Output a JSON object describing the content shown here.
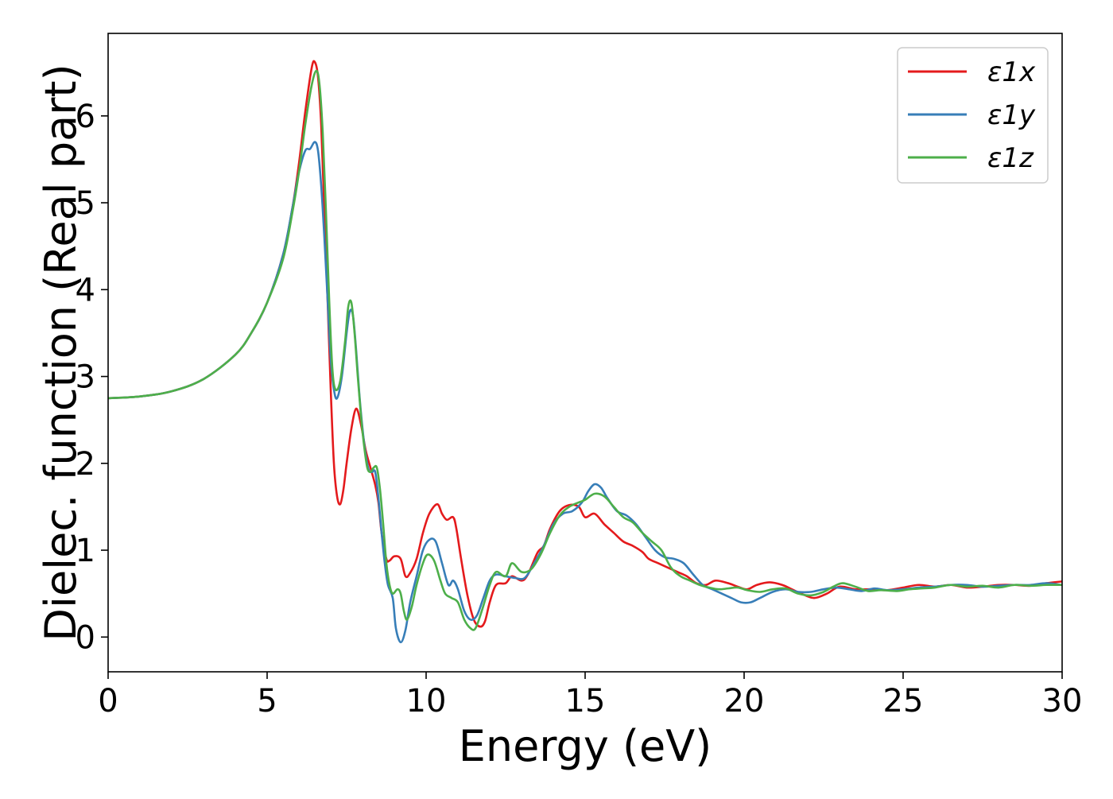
{
  "chart_data": {
    "type": "line",
    "xlabel": "Energy (eV)",
    "ylabel": "Dielec. function (Real part)",
    "xlim": [
      0,
      30
    ],
    "ylim": [
      -0.4,
      6.95
    ],
    "xticks": [
      0,
      5,
      10,
      15,
      20,
      25,
      30
    ],
    "yticks": [
      0,
      1,
      2,
      3,
      4,
      5,
      6
    ],
    "grid": false,
    "legend_position": "top-right",
    "series": [
      {
        "name": "ε1x",
        "color": "#e41a1c",
        "points": [
          [
            0,
            2.75
          ],
          [
            1,
            2.77
          ],
          [
            2,
            2.83
          ],
          [
            3,
            2.97
          ],
          [
            4,
            3.25
          ],
          [
            4.5,
            3.5
          ],
          [
            5,
            3.85
          ],
          [
            5.5,
            4.4
          ],
          [
            5.8,
            4.95
          ],
          [
            6.0,
            5.45
          ],
          [
            6.2,
            6.05
          ],
          [
            6.4,
            6.55
          ],
          [
            6.5,
            6.62
          ],
          [
            6.6,
            6.45
          ],
          [
            6.7,
            5.9
          ],
          [
            6.8,
            4.9
          ],
          [
            6.9,
            3.9
          ],
          [
            7.0,
            2.85
          ],
          [
            7.1,
            2.0
          ],
          [
            7.2,
            1.62
          ],
          [
            7.3,
            1.53
          ],
          [
            7.4,
            1.7
          ],
          [
            7.5,
            2.0
          ],
          [
            7.65,
            2.4
          ],
          [
            7.8,
            2.63
          ],
          [
            7.95,
            2.45
          ],
          [
            8.1,
            2.15
          ],
          [
            8.25,
            1.95
          ],
          [
            8.4,
            1.75
          ],
          [
            8.5,
            1.55
          ],
          [
            8.6,
            1.2
          ],
          [
            8.75,
            0.9
          ],
          [
            8.85,
            0.88
          ],
          [
            9.0,
            0.93
          ],
          [
            9.2,
            0.9
          ],
          [
            9.35,
            0.7
          ],
          [
            9.5,
            0.74
          ],
          [
            9.7,
            0.9
          ],
          [
            9.9,
            1.2
          ],
          [
            10.1,
            1.42
          ],
          [
            10.35,
            1.53
          ],
          [
            10.5,
            1.42
          ],
          [
            10.65,
            1.35
          ],
          [
            10.85,
            1.38
          ],
          [
            10.95,
            1.25
          ],
          [
            11.1,
            0.9
          ],
          [
            11.3,
            0.48
          ],
          [
            11.5,
            0.2
          ],
          [
            11.7,
            0.12
          ],
          [
            11.85,
            0.18
          ],
          [
            12.0,
            0.4
          ],
          [
            12.2,
            0.6
          ],
          [
            12.5,
            0.62
          ],
          [
            12.7,
            0.7
          ],
          [
            13.0,
            0.65
          ],
          [
            13.2,
            0.72
          ],
          [
            13.5,
            0.97
          ],
          [
            13.7,
            1.05
          ],
          [
            13.9,
            1.25
          ],
          [
            14.2,
            1.45
          ],
          [
            14.5,
            1.52
          ],
          [
            14.8,
            1.5
          ],
          [
            15.0,
            1.38
          ],
          [
            15.3,
            1.42
          ],
          [
            15.6,
            1.3
          ],
          [
            15.9,
            1.2
          ],
          [
            16.2,
            1.1
          ],
          [
            16.5,
            1.05
          ],
          [
            16.8,
            0.98
          ],
          [
            17.0,
            0.9
          ],
          [
            17.3,
            0.85
          ],
          [
            17.6,
            0.8
          ],
          [
            17.9,
            0.75
          ],
          [
            18.2,
            0.7
          ],
          [
            18.5,
            0.62
          ],
          [
            18.8,
            0.6
          ],
          [
            19.1,
            0.65
          ],
          [
            19.5,
            0.62
          ],
          [
            19.8,
            0.58
          ],
          [
            20.1,
            0.55
          ],
          [
            20.4,
            0.6
          ],
          [
            20.8,
            0.63
          ],
          [
            21.2,
            0.6
          ],
          [
            21.5,
            0.55
          ],
          [
            21.8,
            0.5
          ],
          [
            22.2,
            0.45
          ],
          [
            22.6,
            0.5
          ],
          [
            23.0,
            0.58
          ],
          [
            23.5,
            0.55
          ],
          [
            24.0,
            0.55
          ],
          [
            24.5,
            0.54
          ],
          [
            25.0,
            0.57
          ],
          [
            25.5,
            0.6
          ],
          [
            26.0,
            0.58
          ],
          [
            26.5,
            0.6
          ],
          [
            27.0,
            0.57
          ],
          [
            27.5,
            0.58
          ],
          [
            28.0,
            0.6
          ],
          [
            28.5,
            0.6
          ],
          [
            29.0,
            0.59
          ],
          [
            29.5,
            0.62
          ],
          [
            30.0,
            0.64
          ]
        ]
      },
      {
        "name": "ε1y",
        "color": "#377eb8",
        "points": [
          [
            0,
            2.75
          ],
          [
            1,
            2.77
          ],
          [
            2,
            2.83
          ],
          [
            3,
            2.97
          ],
          [
            4,
            3.25
          ],
          [
            4.5,
            3.5
          ],
          [
            5,
            3.85
          ],
          [
            5.5,
            4.4
          ],
          [
            5.8,
            4.95
          ],
          [
            6.0,
            5.35
          ],
          [
            6.2,
            5.6
          ],
          [
            6.35,
            5.62
          ],
          [
            6.5,
            5.7
          ],
          [
            6.6,
            5.6
          ],
          [
            6.7,
            5.2
          ],
          [
            6.8,
            4.6
          ],
          [
            6.9,
            3.9
          ],
          [
            7.0,
            3.2
          ],
          [
            7.1,
            2.85
          ],
          [
            7.2,
            2.75
          ],
          [
            7.35,
            3.0
          ],
          [
            7.5,
            3.5
          ],
          [
            7.6,
            3.75
          ],
          [
            7.7,
            3.7
          ],
          [
            7.8,
            3.3
          ],
          [
            7.9,
            2.8
          ],
          [
            8.0,
            2.4
          ],
          [
            8.1,
            2.1
          ],
          [
            8.2,
            1.92
          ],
          [
            8.3,
            1.9
          ],
          [
            8.4,
            1.9
          ],
          [
            8.5,
            1.6
          ],
          [
            8.6,
            1.2
          ],
          [
            8.7,
            0.85
          ],
          [
            8.8,
            0.6
          ],
          [
            8.95,
            0.45
          ],
          [
            9.05,
            0.1
          ],
          [
            9.2,
            -0.06
          ],
          [
            9.35,
            0.08
          ],
          [
            9.5,
            0.4
          ],
          [
            9.7,
            0.7
          ],
          [
            9.9,
            1.0
          ],
          [
            10.1,
            1.12
          ],
          [
            10.3,
            1.1
          ],
          [
            10.5,
            0.85
          ],
          [
            10.7,
            0.6
          ],
          [
            10.85,
            0.65
          ],
          [
            11.0,
            0.55
          ],
          [
            11.2,
            0.3
          ],
          [
            11.4,
            0.2
          ],
          [
            11.6,
            0.25
          ],
          [
            11.8,
            0.45
          ],
          [
            12.0,
            0.65
          ],
          [
            12.2,
            0.72
          ],
          [
            12.5,
            0.7
          ],
          [
            12.8,
            0.68
          ],
          [
            13.1,
            0.68
          ],
          [
            13.4,
            0.85
          ],
          [
            13.7,
            1.05
          ],
          [
            14.0,
            1.3
          ],
          [
            14.3,
            1.42
          ],
          [
            14.6,
            1.45
          ],
          [
            14.9,
            1.55
          ],
          [
            15.1,
            1.68
          ],
          [
            15.3,
            1.76
          ],
          [
            15.5,
            1.72
          ],
          [
            15.7,
            1.6
          ],
          [
            16.0,
            1.45
          ],
          [
            16.3,
            1.4
          ],
          [
            16.6,
            1.3
          ],
          [
            16.9,
            1.15
          ],
          [
            17.2,
            1.0
          ],
          [
            17.5,
            0.92
          ],
          [
            17.8,
            0.9
          ],
          [
            18.1,
            0.85
          ],
          [
            18.4,
            0.72
          ],
          [
            18.7,
            0.6
          ],
          [
            19.0,
            0.55
          ],
          [
            19.3,
            0.5
          ],
          [
            19.6,
            0.45
          ],
          [
            19.9,
            0.4
          ],
          [
            20.2,
            0.4
          ],
          [
            20.5,
            0.45
          ],
          [
            20.9,
            0.52
          ],
          [
            21.3,
            0.55
          ],
          [
            21.7,
            0.52
          ],
          [
            22.1,
            0.52
          ],
          [
            22.5,
            0.55
          ],
          [
            22.9,
            0.57
          ],
          [
            23.3,
            0.55
          ],
          [
            23.7,
            0.53
          ],
          [
            24.1,
            0.56
          ],
          [
            24.5,
            0.54
          ],
          [
            25.0,
            0.55
          ],
          [
            25.5,
            0.57
          ],
          [
            26.0,
            0.58
          ],
          [
            26.5,
            0.6
          ],
          [
            27.0,
            0.6
          ],
          [
            27.5,
            0.58
          ],
          [
            28.0,
            0.59
          ],
          [
            28.5,
            0.6
          ],
          [
            29.0,
            0.6
          ],
          [
            29.5,
            0.62
          ],
          [
            30.0,
            0.6
          ]
        ]
      },
      {
        "name": "ε1z",
        "color": "#4daf4a",
        "points": [
          [
            0,
            2.75
          ],
          [
            1,
            2.77
          ],
          [
            2,
            2.83
          ],
          [
            3,
            2.97
          ],
          [
            4,
            3.25
          ],
          [
            4.5,
            3.5
          ],
          [
            5,
            3.85
          ],
          [
            5.5,
            4.35
          ],
          [
            5.8,
            4.9
          ],
          [
            6.0,
            5.35
          ],
          [
            6.2,
            5.9
          ],
          [
            6.4,
            6.35
          ],
          [
            6.55,
            6.52
          ],
          [
            6.65,
            6.35
          ],
          [
            6.75,
            5.8
          ],
          [
            6.85,
            4.9
          ],
          [
            6.95,
            3.9
          ],
          [
            7.05,
            3.1
          ],
          [
            7.15,
            2.85
          ],
          [
            7.3,
            2.95
          ],
          [
            7.45,
            3.4
          ],
          [
            7.55,
            3.8
          ],
          [
            7.65,
            3.85
          ],
          [
            7.75,
            3.5
          ],
          [
            7.85,
            3.0
          ],
          [
            7.95,
            2.55
          ],
          [
            8.05,
            2.2
          ],
          [
            8.15,
            1.95
          ],
          [
            8.25,
            1.9
          ],
          [
            8.35,
            1.95
          ],
          [
            8.45,
            1.95
          ],
          [
            8.55,
            1.7
          ],
          [
            8.65,
            1.3
          ],
          [
            8.75,
            0.85
          ],
          [
            8.85,
            0.6
          ],
          [
            8.95,
            0.5
          ],
          [
            9.1,
            0.55
          ],
          [
            9.2,
            0.5
          ],
          [
            9.3,
            0.3
          ],
          [
            9.4,
            0.2
          ],
          [
            9.55,
            0.35
          ],
          [
            9.7,
            0.6
          ],
          [
            9.9,
            0.85
          ],
          [
            10.05,
            0.95
          ],
          [
            10.25,
            0.88
          ],
          [
            10.45,
            0.65
          ],
          [
            10.6,
            0.5
          ],
          [
            10.8,
            0.45
          ],
          [
            11.0,
            0.4
          ],
          [
            11.2,
            0.2
          ],
          [
            11.4,
            0.1
          ],
          [
            11.55,
            0.1
          ],
          [
            11.75,
            0.3
          ],
          [
            12.0,
            0.6
          ],
          [
            12.2,
            0.75
          ],
          [
            12.5,
            0.7
          ],
          [
            12.7,
            0.85
          ],
          [
            13.0,
            0.75
          ],
          [
            13.3,
            0.78
          ],
          [
            13.6,
            0.95
          ],
          [
            13.9,
            1.2
          ],
          [
            14.2,
            1.4
          ],
          [
            14.5,
            1.5
          ],
          [
            14.8,
            1.55
          ],
          [
            15.0,
            1.58
          ],
          [
            15.3,
            1.65
          ],
          [
            15.6,
            1.62
          ],
          [
            15.9,
            1.5
          ],
          [
            16.2,
            1.38
          ],
          [
            16.5,
            1.32
          ],
          [
            16.8,
            1.2
          ],
          [
            17.1,
            1.1
          ],
          [
            17.4,
            1.0
          ],
          [
            17.7,
            0.8
          ],
          [
            18.0,
            0.7
          ],
          [
            18.3,
            0.65
          ],
          [
            18.6,
            0.6
          ],
          [
            18.9,
            0.57
          ],
          [
            19.2,
            0.55
          ],
          [
            19.5,
            0.56
          ],
          [
            19.8,
            0.57
          ],
          [
            20.1,
            0.54
          ],
          [
            20.5,
            0.52
          ],
          [
            20.9,
            0.55
          ],
          [
            21.3,
            0.56
          ],
          [
            21.7,
            0.5
          ],
          [
            22.1,
            0.48
          ],
          [
            22.5,
            0.52
          ],
          [
            22.8,
            0.58
          ],
          [
            23.1,
            0.62
          ],
          [
            23.5,
            0.58
          ],
          [
            23.9,
            0.53
          ],
          [
            24.3,
            0.54
          ],
          [
            24.8,
            0.53
          ],
          [
            25.2,
            0.55
          ],
          [
            25.6,
            0.56
          ],
          [
            26.0,
            0.57
          ],
          [
            26.5,
            0.6
          ],
          [
            27.0,
            0.58
          ],
          [
            27.5,
            0.59
          ],
          [
            28.0,
            0.57
          ],
          [
            28.5,
            0.6
          ],
          [
            29.0,
            0.59
          ],
          [
            29.5,
            0.6
          ],
          [
            30.0,
            0.6
          ]
        ]
      }
    ]
  }
}
